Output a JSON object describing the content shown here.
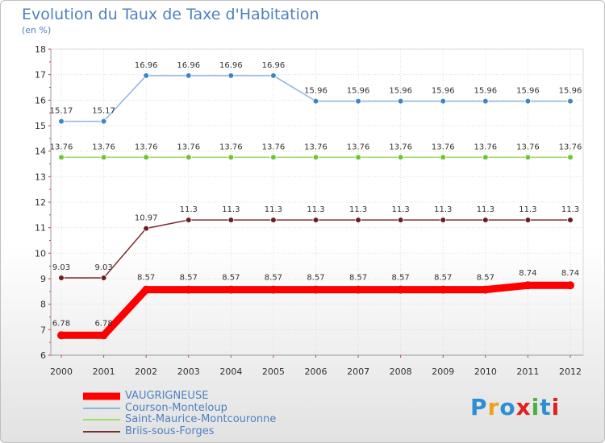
{
  "header": {
    "title": "Evolution du Taux de Taxe d'Habitation",
    "subtitle": "(en %)"
  },
  "logo": {
    "text": "Proxiti",
    "letters": [
      "P",
      "r",
      "o",
      "x",
      "i",
      "t",
      "i"
    ],
    "colors": [
      "#2c8fd6",
      "#f0a020",
      "#2c8fd6",
      "#e02020",
      "#4ab040",
      "#2c8fd6",
      "#e02020"
    ]
  },
  "chart_data": {
    "type": "line",
    "title": "Evolution du Taux de Taxe d'Habitation",
    "ylabel": "(en %)",
    "xlabel": "",
    "x": [
      "2000",
      "2001",
      "2002",
      "2003",
      "2004",
      "2005",
      "2006",
      "2007",
      "2008",
      "2009",
      "2010",
      "2011",
      "2012"
    ],
    "ylim": [
      6,
      18
    ],
    "yticks": [
      "6",
      "7",
      "8",
      "9",
      "10",
      "11",
      "12",
      "13",
      "14",
      "15",
      "16",
      "17",
      "18"
    ],
    "grid": true,
    "legend_position": "bottom-left",
    "series": [
      {
        "name": "VAUGRIGNEUSE",
        "color": "#ff0000",
        "bold": true,
        "values": [
          6.78,
          6.78,
          8.57,
          8.57,
          8.57,
          8.57,
          8.57,
          8.57,
          8.57,
          8.57,
          8.57,
          8.74,
          8.74
        ],
        "labels": [
          "6.78",
          "6.78",
          "8.57",
          "8.57",
          "8.57",
          "8.57",
          "8.57",
          "8.57",
          "8.57",
          "8.57",
          "8.57",
          "8.74",
          "8.74"
        ]
      },
      {
        "name": "Courson-Monteloup",
        "color": "#3c86c6",
        "line_color": "#8fb5dc",
        "values": [
          15.17,
          15.17,
          16.96,
          16.96,
          16.96,
          16.96,
          15.96,
          15.96,
          15.96,
          15.96,
          15.96,
          15.96,
          15.96
        ],
        "labels": [
          "15.17",
          "15.17",
          "16.96",
          "16.96",
          "16.96",
          "16.96",
          "15.96",
          "15.96",
          "15.96",
          "15.96",
          "15.96",
          "15.96",
          "15.96"
        ]
      },
      {
        "name": "Saint-Maurice-Montcouronne",
        "color": "#6ec43a",
        "line_color": "#9fdc6a",
        "values": [
          13.76,
          13.76,
          13.76,
          13.76,
          13.76,
          13.76,
          13.76,
          13.76,
          13.76,
          13.76,
          13.76,
          13.76,
          13.76
        ],
        "labels": [
          "13.76",
          "13.76",
          "13.76",
          "13.76",
          "13.76",
          "13.76",
          "13.76",
          "13.76",
          "13.76",
          "13.76",
          "13.76",
          "13.76",
          "13.76"
        ]
      },
      {
        "name": "Briis-sous-Forges",
        "color": "#6b1c1c",
        "line_color": "#7a3030",
        "values": [
          9.03,
          9.03,
          10.97,
          11.3,
          11.3,
          11.3,
          11.3,
          11.3,
          11.3,
          11.3,
          11.3,
          11.3,
          11.3
        ],
        "labels": [
          "9.03",
          "9.03",
          "10.97",
          "11.3",
          "11.3",
          "11.3",
          "11.3",
          "11.3",
          "11.3",
          "11.3",
          "11.3",
          "11.3",
          "11.3"
        ]
      }
    ]
  }
}
